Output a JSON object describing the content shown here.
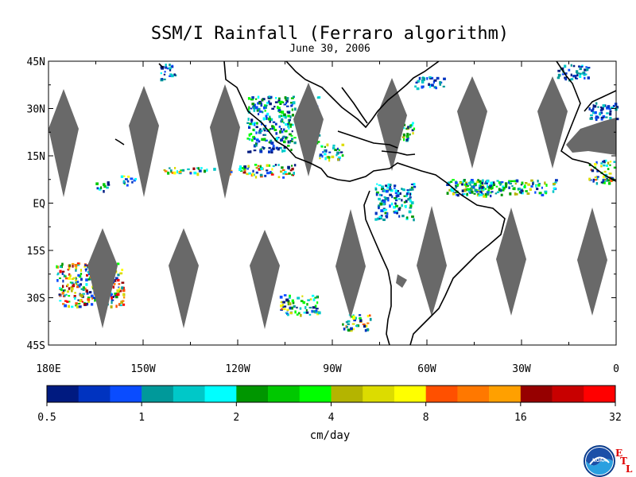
{
  "title": "SSM/I Rainfall (Ferraro algorithm)",
  "subtitle": "June 30, 2006",
  "map": {
    "lon_range": [
      -180,
      0
    ],
    "lat_range": [
      -45,
      45
    ],
    "lat_labels": [
      "45N",
      "30N",
      "15N",
      "EQ",
      "15S",
      "30S",
      "45S"
    ],
    "lat_values": [
      45,
      30,
      15,
      0,
      -15,
      -30,
      -45
    ],
    "lon_labels": [
      "180E",
      "150W",
      "120W",
      "90W",
      "60W",
      "30W",
      "0"
    ],
    "lon_values": [
      -180,
      -150,
      -120,
      -90,
      -60,
      -30,
      0
    ],
    "colors": {
      "no_data_gap": "#696969",
      "coastline": "#000000",
      "background": "#ffffff"
    }
  },
  "colorbar": {
    "tick_labels": [
      "0.5",
      "1",
      "2",
      "4",
      "8",
      "16",
      "32"
    ],
    "unit": "cm/day",
    "colors": [
      "#001a80",
      "#0033c0",
      "#0a4cff",
      "#00999a",
      "#00c8c8",
      "#00ffff",
      "#009600",
      "#00c800",
      "#00ff00",
      "#b4b400",
      "#dcdc00",
      "#ffff00",
      "#ff5000",
      "#ff7800",
      "#ffa000",
      "#960000",
      "#c80000",
      "#ff0000"
    ]
  },
  "logo": {
    "name": "NOAA",
    "etl": [
      "E",
      "T",
      "L"
    ]
  }
}
